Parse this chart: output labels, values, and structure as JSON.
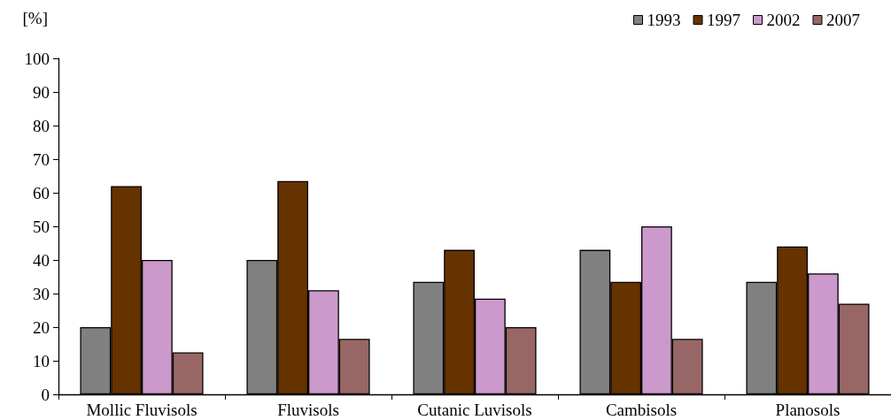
{
  "chart_data": {
    "type": "bar",
    "ylabel": "[%]",
    "categories": [
      "Mollic Fluvisols",
      "Fluvisols",
      "Cutanic Luvisols",
      "Cambisols",
      "Planosols"
    ],
    "series": [
      {
        "name": "1993",
        "color": "#808080",
        "values": [
          20,
          40,
          33.5,
          43,
          33.5
        ]
      },
      {
        "name": "1997",
        "color": "#663300",
        "values": [
          62,
          63.5,
          43,
          33.5,
          44
        ]
      },
      {
        "name": "2002",
        "color": "#cc99cc",
        "values": [
          40,
          31,
          28.5,
          50,
          36
        ]
      },
      {
        "name": "2007",
        "color": "#996666",
        "values": [
          12.5,
          16.5,
          20,
          16.5,
          27
        ]
      }
    ],
    "ylim": [
      0,
      100
    ],
    "yticks": [
      0,
      10,
      20,
      30,
      40,
      50,
      60,
      70,
      80,
      90,
      100
    ],
    "grid": false,
    "legend": "top right"
  }
}
